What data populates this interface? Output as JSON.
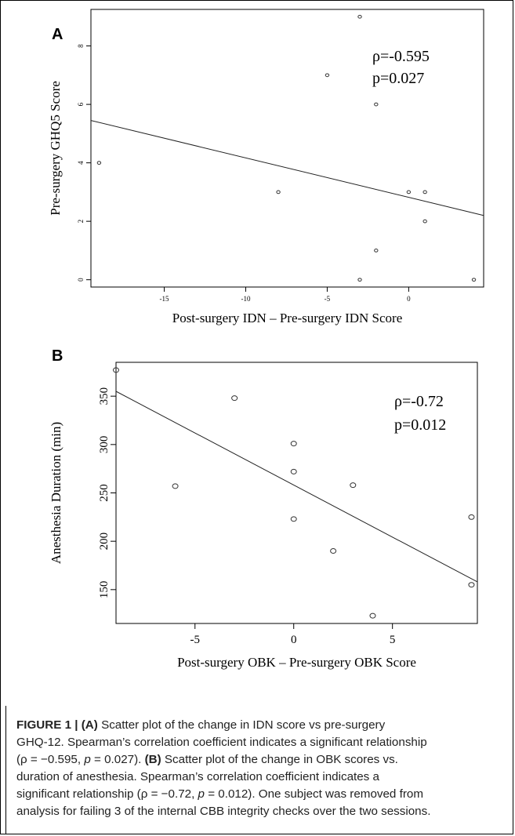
{
  "chart_data": [
    {
      "panel": "A",
      "type": "scatter",
      "xlabel": "Post-surgery IDN – Pre-surgery IDN Score",
      "ylabel": "Pre-surgery GHQ5 Score",
      "xlim": [
        -19.5,
        4.6
      ],
      "ylim": [
        -0.25,
        9.25
      ],
      "xticks": [
        -15,
        -10,
        -5,
        0
      ],
      "xtick_labels": [
        "-15",
        "-10",
        "-5",
        "0"
      ],
      "yticks": [
        0,
        2,
        4,
        6,
        8
      ],
      "ytick_labels": [
        "0",
        "2",
        "4",
        "6",
        "8"
      ],
      "points": [
        {
          "x": -19,
          "y": 4
        },
        {
          "x": -8,
          "y": 3
        },
        {
          "x": -5,
          "y": 7
        },
        {
          "x": -3,
          "y": 9
        },
        {
          "x": -3,
          "y": 0
        },
        {
          "x": -2,
          "y": 6
        },
        {
          "x": -2,
          "y": 1
        },
        {
          "x": 0,
          "y": 3
        },
        {
          "x": 1,
          "y": 3
        },
        {
          "x": 1,
          "y": 2
        },
        {
          "x": 4,
          "y": 0
        }
      ],
      "fit_line": {
        "x": [
          -19.5,
          4.6
        ],
        "y": [
          5.45,
          2.2
        ]
      },
      "annotations": [
        "ρ=-0.595",
        "p=0.027"
      ],
      "grid": false,
      "legend": "none"
    },
    {
      "panel": "B",
      "type": "scatter",
      "xlabel": "Post-surgery OBK – Pre-surgery OBK Score",
      "ylabel": "Anesthesia Duration (min)",
      "xlim": [
        -9,
        9.3
      ],
      "ylim": [
        115,
        385
      ],
      "xticks": [
        -5,
        0,
        5
      ],
      "xtick_labels": [
        "-5",
        "0",
        "5"
      ],
      "yticks": [
        150,
        200,
        250,
        300,
        350
      ],
      "ytick_labels": [
        "150",
        "200",
        "250",
        "300",
        "350"
      ],
      "points": [
        {
          "x": -9,
          "y": 377
        },
        {
          "x": -6,
          "y": 257
        },
        {
          "x": -3,
          "y": 348
        },
        {
          "x": 0,
          "y": 301
        },
        {
          "x": 0,
          "y": 272
        },
        {
          "x": 0,
          "y": 223
        },
        {
          "x": 2,
          "y": 190
        },
        {
          "x": 3,
          "y": 258
        },
        {
          "x": 4,
          "y": 123
        },
        {
          "x": 9,
          "y": 225
        },
        {
          "x": 9,
          "y": 155
        }
      ],
      "fit_line": {
        "x": [
          -9,
          9.3
        ],
        "y": [
          355,
          158
        ]
      },
      "annotations": [
        "ρ=-0.72",
        "p=0.012"
      ],
      "grid": false,
      "legend": "none"
    }
  ],
  "caption": {
    "figure_label": "FIGURE 1 |",
    "line1_a": "(A)",
    "line1_b": "Scatter plot of the change in IDN score vs pre-surgery",
    "line2": "GHQ-12. Spearman’s correlation coefficient indicates a significant relationship",
    "line3_a": "(ρ = −0.595, ",
    "line3_p": "p",
    "line3_b": " = 0.027). ",
    "line3_c": "(B)",
    "line3_d": " Scatter plot of the change in OBK scores vs.",
    "line4": "duration of anesthesia. Spearman’s correlation coefficient indicates a",
    "line5_a": "significant relationship (ρ = −0.72, ",
    "line5_p": "p",
    "line5_b": " = 0.012). One subject was removed from",
    "line6": "analysis for failing 3 of the internal CBB integrity checks over the two sessions."
  }
}
